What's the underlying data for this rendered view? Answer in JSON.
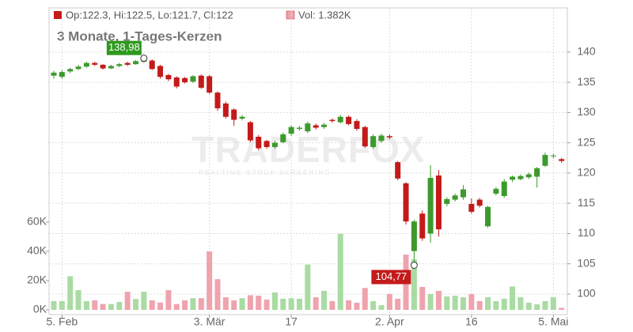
{
  "chart_data": {
    "type": "candlestick",
    "subtitle": "3 Monate, 1-Tages-Kerzen",
    "legend": {
      "ohlc": "Op:122.3, Hi:122.5, Lo:121.7, Cl:122",
      "volume": "Vol: 1.382K"
    },
    "watermark": {
      "brand": "TRADERFOX",
      "tagline": "REALTIME STOCK SCREENING"
    },
    "categories": [
      null,
      "5. Feb",
      null,
      null,
      null,
      null,
      null,
      null,
      null,
      null,
      null,
      null,
      null,
      null,
      null,
      null,
      null,
      null,
      null,
      "3. Mär",
      null,
      null,
      null,
      null,
      null,
      null,
      null,
      null,
      null,
      "17",
      null,
      null,
      null,
      null,
      null,
      null,
      null,
      null,
      null,
      null,
      null,
      "2. Apr",
      null,
      null,
      null,
      null,
      null,
      null,
      null,
      null,
      null,
      "16",
      null,
      null,
      null,
      null,
      null,
      null,
      null,
      null,
      null,
      "5. Mai",
      null
    ],
    "open": [
      136.1,
      135.9,
      136.8,
      137.2,
      137.6,
      138.2,
      137.9,
      137.3,
      137.7,
      138.2,
      138.0,
      138.4,
      138.6,
      137.7,
      136.2,
      135.8,
      135.7,
      135.1,
      136.1,
      136.0,
      133.3,
      131.5,
      130.5,
      129.0,
      128.4,
      126.0,
      125.3,
      124.3,
      125.1,
      126.5,
      127.3,
      126.9,
      127.9,
      127.6,
      128.8,
      128.4,
      129.3,
      128.6,
      127.6,
      124.3,
      125.3,
      126.1,
      121.8,
      118.3,
      107.1,
      113.3,
      110.0,
      119.6,
      114.9,
      115.6,
      116.0,
      114.9,
      115.6,
      111.2,
      116.6,
      116.2,
      118.9,
      119.0,
      119.3,
      119.4,
      121.2,
      122.8,
      122.3
    ],
    "high": [
      136.9,
      137.0,
      137.4,
      137.9,
      138.4,
      138.4,
      138.0,
      137.9,
      138.2,
      138.4,
      138.7,
      138.98,
      138.8,
      137.9,
      136.4,
      136.0,
      135.9,
      136.2,
      136.3,
      136.2,
      133.5,
      131.8,
      130.7,
      129.6,
      128.6,
      126.3,
      125.5,
      125.3,
      126.7,
      127.9,
      127.8,
      128.5,
      128.2,
      128.3,
      129.0,
      129.6,
      129.5,
      128.9,
      127.8,
      126.4,
      126.5,
      126.4,
      122.0,
      118.5,
      112.3,
      113.8,
      121.3,
      120.5,
      116.0,
      116.6,
      118.0,
      115.8,
      115.9,
      114.6,
      117.7,
      119.0,
      119.6,
      119.8,
      120.1,
      121.0,
      123.4,
      123.2,
      122.5
    ],
    "low": [
      135.6,
      135.6,
      136.5,
      137.0,
      137.4,
      137.7,
      137.1,
      137.2,
      137.5,
      137.7,
      137.9,
      138.2,
      137.0,
      135.6,
      135.2,
      134.0,
      134.8,
      134.9,
      133.9,
      133.1,
      130.3,
      129.0,
      127.8,
      128.7,
      125.1,
      123.8,
      124.0,
      124.0,
      124.9,
      126.1,
      127.0,
      126.6,
      127.2,
      127.3,
      128.3,
      128.2,
      127.9,
      127.0,
      124.1,
      124.0,
      125.0,
      125.6,
      118.8,
      111.5,
      104.77,
      108.8,
      108.5,
      109.5,
      114.5,
      115.3,
      115.6,
      113.3,
      114.3,
      111.0,
      116.3,
      115.9,
      118.5,
      118.8,
      119.0,
      117.6,
      121.0,
      122.4,
      121.7
    ],
    "close": [
      136.6,
      136.7,
      137.2,
      137.6,
      138.2,
      137.9,
      137.3,
      137.7,
      138.0,
      137.9,
      138.5,
      138.7,
      137.2,
      135.9,
      135.5,
      134.3,
      135.0,
      136.0,
      134.1,
      133.3,
      130.7,
      129.3,
      128.8,
      129.3,
      125.4,
      124.1,
      124.3,
      125.0,
      126.4,
      127.6,
      127.5,
      128.2,
      127.5,
      128.0,
      128.6,
      129.3,
      128.1,
      127.3,
      124.4,
      126.1,
      126.2,
      125.9,
      119.1,
      112.0,
      112.0,
      109.2,
      119.2,
      110.7,
      115.7,
      116.3,
      117.3,
      113.6,
      114.6,
      114.4,
      117.4,
      118.6,
      119.4,
      119.5,
      119.8,
      120.8,
      123.0,
      122.9,
      122.0
    ],
    "volume": [
      6,
      6,
      23,
      13.5,
      6,
      6.5,
      4,
      4,
      5.4,
      12.4,
      7.5,
      12.4,
      6.5,
      5,
      13.5,
      4,
      6.5,
      8,
      8,
      40,
      21,
      8.6,
      6.5,
      8,
      10,
      9.7,
      7,
      11.9,
      7.6,
      8,
      7.6,
      31,
      8.6,
      13,
      6,
      52,
      6.5,
      4.9,
      15,
      6,
      3.2,
      10.8,
      7.6,
      37.8,
      34.6,
      15.7,
      10.8,
      13,
      9.2,
      9.7,
      8.6,
      10.8,
      6,
      8.6,
      6,
      7.6,
      16,
      8.6,
      4.9,
      3.8,
      6,
      8.6,
      1.382
    ],
    "up_color": "#3c9a2c",
    "down_color": "#c41a1a",
    "volume_up_color": "#a9dba2",
    "volume_down_color": "#efa3ad",
    "ylim": [
      96.6,
      147.3
    ],
    "yticks": [
      100,
      105,
      110,
      115,
      120,
      125,
      130,
      135,
      140
    ],
    "volume_ylim": [
      -3.24,
      206.5
    ],
    "volume_yticks": [
      {
        "value": 0,
        "label": "0K"
      },
      {
        "value": 20,
        "label": "20K"
      },
      {
        "value": 40,
        "label": "40K"
      },
      {
        "value": 60,
        "label": "60K"
      }
    ],
    "grid": true,
    "high_label": "138,98",
    "low_label": "104,77"
  }
}
